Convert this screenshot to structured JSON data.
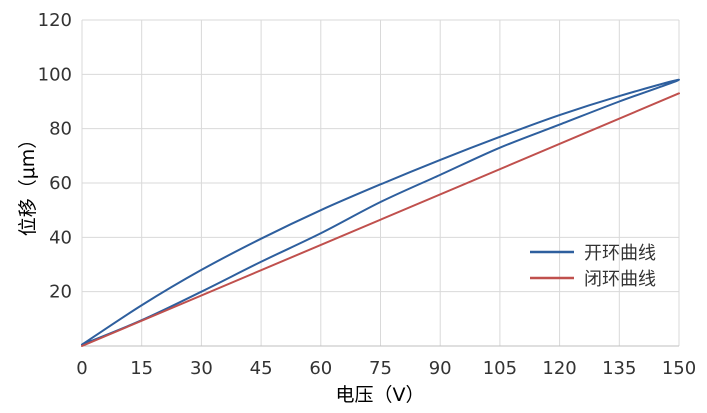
{
  "chart_data": {
    "type": "line",
    "xlabel": "电压（V）",
    "ylabel": "位移（μm）",
    "xlim": [
      0,
      150
    ],
    "ylim": [
      0,
      120
    ],
    "x_ticks": [
      "0",
      "15",
      "30",
      "45",
      "60",
      "75",
      "90",
      "105",
      "120",
      "135",
      "150"
    ],
    "y_ticks": [
      "20",
      "40",
      "60",
      "80",
      "100",
      "120"
    ],
    "grid": true,
    "legend_position": "right",
    "series": [
      {
        "name": "开环曲线",
        "color": "#2e5f9e",
        "x": [
          0,
          15,
          30,
          45,
          60,
          75,
          90,
          105,
          120,
          135,
          150,
          135,
          120,
          105,
          90,
          75,
          60,
          45,
          30,
          15,
          0
        ],
        "y": [
          0.5,
          9.5,
          20,
          31,
          41.5,
          53,
          63,
          73,
          81.5,
          90,
          98,
          92,
          85,
          77,
          68.5,
          59.5,
          50,
          39.5,
          28,
          15,
          0.5
        ]
      },
      {
        "name": "闭环曲线",
        "color": "#c0504d",
        "x": [
          0,
          150
        ],
        "y": [
          0,
          93
        ]
      }
    ]
  }
}
